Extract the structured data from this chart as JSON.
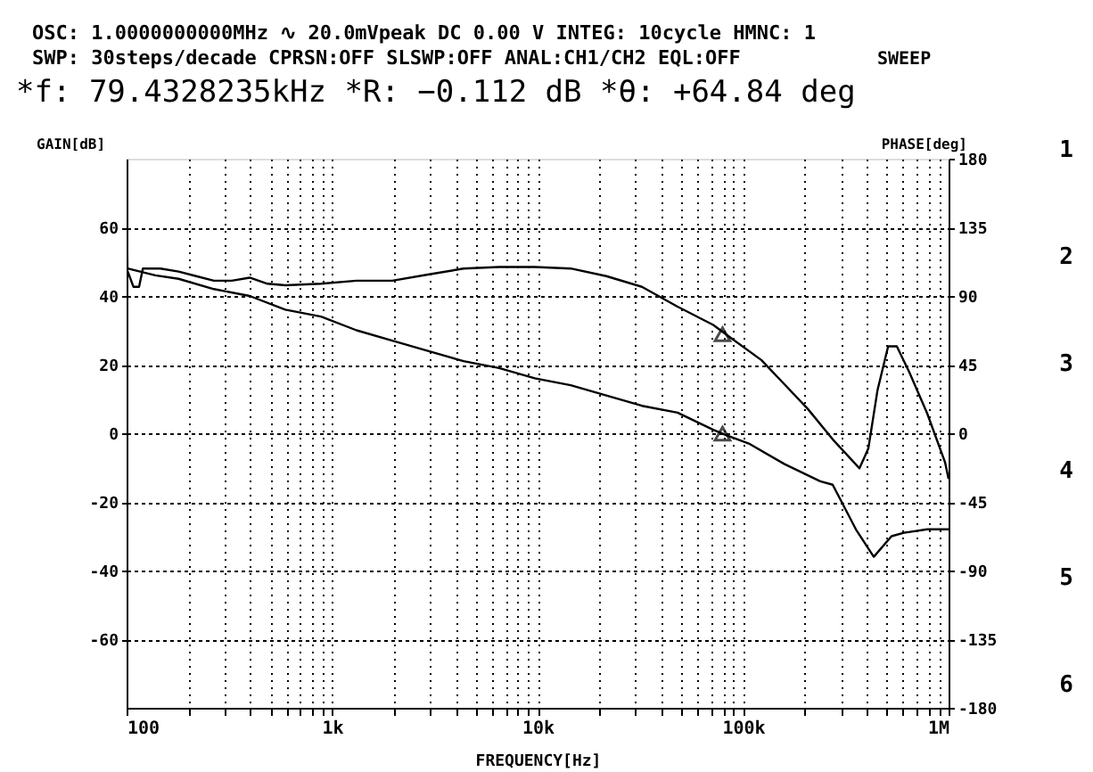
{
  "chart_data": {
    "type": "line",
    "title": "*f:   79.4328235kHz   *R:  −0.112 dB   *θ: +64.84  deg",
    "xlabel": "FREQUENCY[Hz]",
    "ylabel": "GAIN[dB]",
    "y2label": "PHASE[deg]",
    "annotations": [
      "OSC: 1.0000000000MHz  ∿ 20.0mVpeak DC  0.00 V  INTEG:   10cycle  HMNC: 1",
      "SWP:    30steps/decade CPRSN:OFF SLSWP:OFF ANAL:CH1/CH2 EQL:OFF",
      "SWEEP",
      "1",
      "2",
      "3",
      "4",
      "5",
      "6"
    ],
    "log": "x",
    "grid": true,
    "line_style": "solid",
    "xlim": [
      100,
      1000000
    ],
    "ylim": [
      -80,
      80
    ],
    "y2lim": [
      -180,
      180
    ],
    "xticks": [
      {
        "value": 100,
        "label": "100"
      },
      {
        "value": 200,
        "label": null
      },
      {
        "value": 300,
        "label": null
      },
      {
        "value": 400,
        "label": null
      },
      {
        "value": 500,
        "label": null
      },
      {
        "value": 600,
        "label": null
      },
      {
        "value": 700,
        "label": null
      },
      {
        "value": 800,
        "label": null
      },
      {
        "value": 900,
        "label": null
      },
      {
        "value": 1000,
        "label": "1k"
      },
      {
        "value": 2000,
        "label": null
      },
      {
        "value": 3000,
        "label": null
      },
      {
        "value": 4000,
        "label": null
      },
      {
        "value": 5000,
        "label": null
      },
      {
        "value": 6000,
        "label": null
      },
      {
        "value": 7000,
        "label": null
      },
      {
        "value": 8000,
        "label": null
      },
      {
        "value": 9000,
        "label": null
      },
      {
        "value": 10000,
        "label": "10k"
      },
      {
        "value": 20000,
        "label": null
      },
      {
        "value": 30000,
        "label": null
      },
      {
        "value": 40000,
        "label": null
      },
      {
        "value": 50000,
        "label": null
      },
      {
        "value": 60000,
        "label": null
      },
      {
        "value": 70000,
        "label": null
      },
      {
        "value": 80000,
        "label": null
      },
      {
        "value": 90000,
        "label": null
      },
      {
        "value": 100000,
        "label": "100k"
      },
      {
        "value": 200000,
        "label": null
      },
      {
        "value": 300000,
        "label": null
      },
      {
        "value": 400000,
        "label": null
      },
      {
        "value": 500000,
        "label": null
      },
      {
        "value": 600000,
        "label": null
      },
      {
        "value": 700000,
        "label": null
      },
      {
        "value": 800000,
        "label": null
      },
      {
        "value": 900000,
        "label": null
      },
      {
        "value": 1000000,
        "label": "1M"
      }
    ],
    "yticks": [
      -60,
      -40,
      -20,
      0,
      20,
      40,
      60
    ],
    "y2ticks": [
      -180,
      -135,
      -90,
      -45,
      0,
      45,
      90,
      135,
      180
    ],
    "series": [
      {
        "type": "line",
        "color": "#000000",
        "x": [
          100,
          101,
          138,
          179,
          266,
          397,
          592,
          883,
          1315,
          1963,
          2925,
          4365,
          6500,
          9700,
          14490,
          21600,
          32200,
          48000,
          71600,
          82200,
          106700,
          159200,
          237300,
          272900,
          354000,
          432500,
          527700,
          606400,
          787000,
          1000000
        ],
        "values": [
          73,
          48,
          46,
          45,
          42,
          40,
          36,
          34,
          30,
          27,
          24,
          21,
          19,
          16,
          14,
          11,
          8,
          6,
          1,
          -0.5,
          -3,
          -9,
          -14,
          -15,
          -28,
          -36,
          -30,
          -29,
          -28,
          -28
        ]
      },
      {
        "type": "line",
        "axis": "y2",
        "color": "#000000",
        "x": [
          100,
          108,
          115,
          120,
          146,
          179,
          218,
          266,
          325,
          397,
          485,
          592,
          883,
          1315,
          1963,
          2925,
          4365,
          6500,
          9700,
          14490,
          21600,
          32200,
          48000,
          71600,
          82200,
          122700,
          159200,
          206400,
          272900,
          368500,
          407000,
          450700,
          508000,
          560000,
          644000,
          787000,
          961000,
          1000000
        ],
        "values": [
          108,
          96,
          96,
          108,
          108,
          106,
          103,
          100,
          100,
          102,
          98,
          97,
          98,
          100,
          100,
          104,
          108,
          109,
          109,
          108,
          103,
          96,
          83,
          71,
          65,
          48,
          32,
          16,
          -4,
          -23,
          -10,
          28,
          57,
          57,
          40,
          13,
          -19,
          -30
        ]
      },
      {
        "type": "scatter",
        "marker": "triangle",
        "color": "#000000",
        "x": [
          79432.8235
        ],
        "values": [
          -0.112
        ]
      },
      {
        "type": "scatter",
        "axis": "y2",
        "marker": "triangle",
        "color": "#000000",
        "x": [
          79432.8235
        ],
        "values": [
          64.84
        ]
      }
    ]
  }
}
